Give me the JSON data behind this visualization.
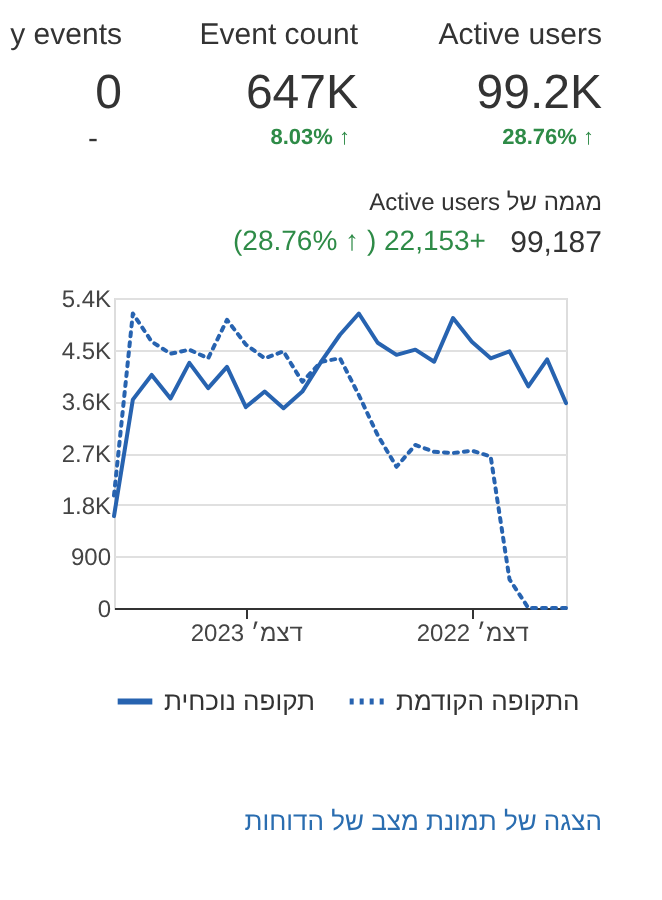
{
  "chart_data": {
    "type": "line",
    "title": "Active users מגמה של",
    "annotations": [
      "y events",
      "0",
      "-",
      "Event count",
      "647K",
      "8.03% ↑",
      "Active users",
      "99.2K",
      "28.76% ↑",
      "(28.76% ↑ ) 22,153+",
      "99,187",
      "הצגה של תמונת מצב של הדוחות"
    ],
    "categories": [
      null,
      null,
      null,
      null,
      null,
      null,
      null,
      "דצמ׳ 2023",
      null,
      null,
      null,
      null,
      null,
      null,
      null,
      null,
      null,
      null,
      null,
      "דצמ׳ 2022",
      null,
      null,
      null,
      null,
      null
    ],
    "series": [
      {
        "name": "תקופה נוכחית",
        "color": "#2763b0",
        "line_style": "solid",
        "values": [
          1600,
          3630,
          4060,
          3650,
          4270,
          3830,
          4200,
          3500,
          3770,
          3480,
          3770,
          4290,
          4760,
          5130,
          4620,
          4410,
          4500,
          4290,
          5050,
          4640,
          4350,
          4470,
          3860,
          4330,
          3570
        ]
      },
      {
        "name": "התקופה הקודמת",
        "color": "#2763b0",
        "line_style": "dotted",
        "values": [
          1960,
          5130,
          4640,
          4430,
          4500,
          4350,
          5020,
          4590,
          4350,
          4470,
          3940,
          4290,
          4350,
          3710,
          3010,
          2460,
          2840,
          2720,
          2700,
          2740,
          2640,
          500,
          0,
          0,
          0
        ]
      }
    ],
    "ylim": [
      0,
      5400
    ],
    "yticks": [
      0,
      900,
      {
        "value": 1800,
        "label": "1.8K"
      },
      {
        "value": 2700,
        "label": "2.7K"
      },
      {
        "value": 3600,
        "label": "3.6K"
      },
      {
        "value": 4500,
        "label": "4.5K"
      },
      {
        "value": 5400,
        "label": "5.4K"
      }
    ],
    "grid": "y",
    "legend": "bottom"
  }
}
